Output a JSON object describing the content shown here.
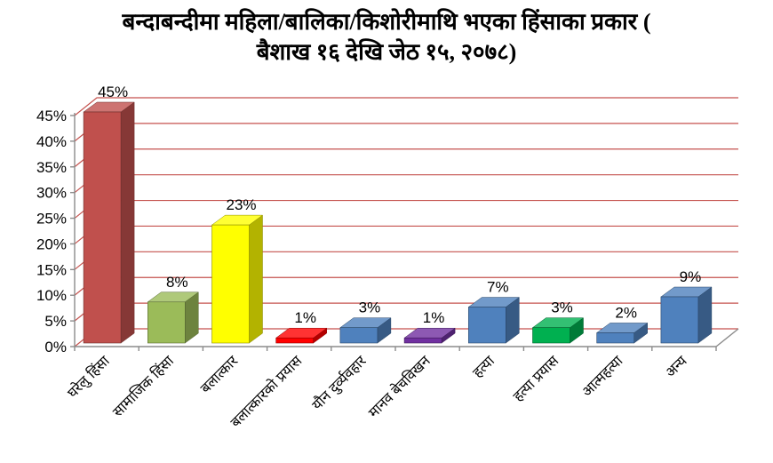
{
  "title_lines": [
    "बन्दाबन्दीमा महिला/बालिका/किशोरीमाथि भएका हिंसाका प्रकार (",
    "बैशाख १६ देखि जेठ १५, २०७८)"
  ],
  "chart_data": {
    "type": "bar",
    "style": "3d-column",
    "title": "बन्दाबन्दीमा महिला/बालिका/किशोरीमाथि भएका हिंसाका प्रकार ( बैशाख १६ देखि जेठ १५, २०७८)",
    "categories": [
      "घरेलु हिंसा",
      "सामाजिक हिंसा",
      "बलात्कार",
      "बलात्कारको प्रयास",
      "यौन दुर्व्यवहार",
      "मानव बेचविखन",
      "हत्या",
      "हत्या प्रयास",
      "आत्महत्या",
      "अन्य"
    ],
    "values": [
      45,
      8,
      23,
      1,
      3,
      1,
      7,
      3,
      2,
      9
    ],
    "value_labels": [
      "45%",
      "8%",
      "23%",
      "1%",
      "3%",
      "1%",
      "7%",
      "3%",
      "2%",
      "9%"
    ],
    "bar_colors": [
      "#C0504D",
      "#9BBB59",
      "#FFFF00",
      "#FF0000",
      "#4F81BD",
      "#7030A0",
      "#4F81BD",
      "#00B050",
      "#4F81BD",
      "#4F81BD"
    ],
    "xlabel": "",
    "ylabel": "",
    "ylim": [
      0,
      45
    ],
    "ytick_step": 5,
    "ytick_labels": [
      "0%",
      "5%",
      "10%",
      "15%",
      "20%",
      "25%",
      "30%",
      "35%",
      "40%",
      "45%"
    ],
    "grid": true,
    "legend": "none",
    "gridline_color": "#C5524E",
    "axis_color": "#8C8C8C",
    "text_color": "#000000"
  }
}
